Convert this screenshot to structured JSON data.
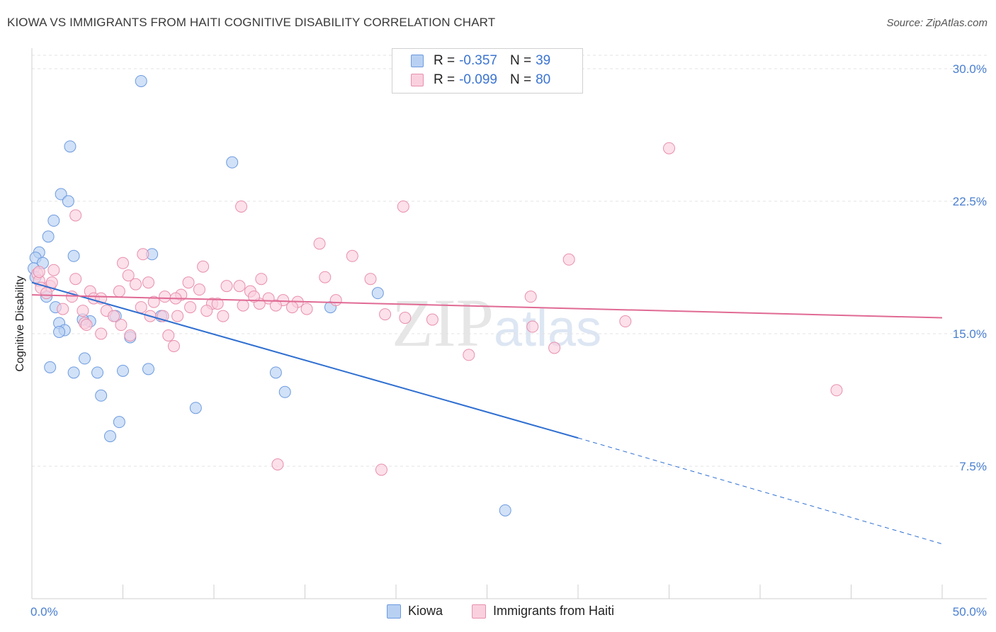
{
  "title": "KIOWA VS IMMIGRANTS FROM HAITI COGNITIVE DISABILITY CORRELATION CHART",
  "source": "Source: ZipAtlas.com",
  "watermark": {
    "zip": "ZIP",
    "atlas": "atlas"
  },
  "legend": {
    "rows": [
      {
        "r_label": "R =",
        "r_value": "-0.357",
        "n_label": "N =",
        "n_value": "39",
        "color": "#a9c8f0",
        "border": "#6d9be0"
      },
      {
        "r_label": "R =",
        "r_value": "-0.099",
        "n_label": "N =",
        "n_value": "80",
        "color": "#f8c4d4",
        "border": "#e890ad"
      }
    ]
  },
  "bottom_legend": [
    {
      "label": "Kiowa",
      "color": "#b8d1f3",
      "border": "#6d9be0"
    },
    {
      "label": "Immigrants from Haiti",
      "color": "#fad0de",
      "border": "#e890ad"
    }
  ],
  "chart_data": {
    "type": "scatter",
    "title": "KIOWA VS IMMIGRANTS FROM HAITI COGNITIVE DISABILITY CORRELATION CHART",
    "xlabel": "",
    "ylabel": "Cognitive Disability",
    "xlim": [
      0,
      50
    ],
    "ylim": [
      0,
      30
    ],
    "x_tick_labels": [
      "0.0%",
      "50.0%"
    ],
    "y_ticks": [
      7.5,
      15.0,
      22.5,
      30.0
    ],
    "y_tick_labels": [
      "7.5%",
      "15.0%",
      "22.5%",
      "30.0%"
    ],
    "grid": true,
    "series": [
      {
        "name": "Kiowa",
        "color": "#6d9be0",
        "fill": "#b8d1f3",
        "points": [
          [
            6.0,
            29.3
          ],
          [
            2.1,
            25.6
          ],
          [
            11.0,
            24.7
          ],
          [
            1.6,
            22.9
          ],
          [
            2.0,
            22.5
          ],
          [
            1.2,
            21.4
          ],
          [
            0.9,
            20.5
          ],
          [
            0.4,
            19.6
          ],
          [
            0.2,
            19.3
          ],
          [
            6.6,
            19.5
          ],
          [
            2.3,
            19.4
          ],
          [
            0.6,
            19.0
          ],
          [
            0.1,
            18.7
          ],
          [
            0.2,
            18.2
          ],
          [
            0.8,
            17.1
          ],
          [
            19.0,
            17.3
          ],
          [
            1.3,
            16.5
          ],
          [
            16.4,
            16.5
          ],
          [
            4.6,
            16.0
          ],
          [
            3.2,
            15.7
          ],
          [
            1.5,
            15.6
          ],
          [
            2.8,
            15.8
          ],
          [
            7.1,
            16.0
          ],
          [
            1.8,
            15.2
          ],
          [
            1.5,
            15.1
          ],
          [
            5.4,
            14.8
          ],
          [
            2.9,
            13.6
          ],
          [
            1.0,
            13.1
          ],
          [
            6.4,
            13.0
          ],
          [
            2.3,
            12.8
          ],
          [
            3.6,
            12.8
          ],
          [
            5.0,
            12.9
          ],
          [
            13.4,
            12.8
          ],
          [
            13.9,
            11.7
          ],
          [
            3.8,
            11.5
          ],
          [
            9.0,
            10.8
          ],
          [
            4.8,
            10.0
          ],
          [
            4.3,
            9.2
          ],
          [
            26.0,
            5.0
          ]
        ],
        "trend": {
          "x0": 0.0,
          "y0": 17.9,
          "x1": 30.0,
          "y1": 9.1,
          "dash_x1": 50.0,
          "dash_y1": 3.1
        }
      },
      {
        "name": "Immigrants from Haiti",
        "color": "#e890ad",
        "fill": "#fad0de",
        "points": [
          [
            35.0,
            25.5
          ],
          [
            11.5,
            22.2
          ],
          [
            20.4,
            22.2
          ],
          [
            2.4,
            21.7
          ],
          [
            15.8,
            20.1
          ],
          [
            6.1,
            19.5
          ],
          [
            17.6,
            19.4
          ],
          [
            29.5,
            19.2
          ],
          [
            5.0,
            19.0
          ],
          [
            9.4,
            18.8
          ],
          [
            1.2,
            18.6
          ],
          [
            0.3,
            18.4
          ],
          [
            5.3,
            18.3
          ],
          [
            16.1,
            18.2
          ],
          [
            2.4,
            18.1
          ],
          [
            0.4,
            18.0
          ],
          [
            12.6,
            18.1
          ],
          [
            18.6,
            18.1
          ],
          [
            6.4,
            17.9
          ],
          [
            8.6,
            17.9
          ],
          [
            5.7,
            17.8
          ],
          [
            1.0,
            17.7
          ],
          [
            10.7,
            17.7
          ],
          [
            11.4,
            17.7
          ],
          [
            0.5,
            17.6
          ],
          [
            9.2,
            17.5
          ],
          [
            3.2,
            17.4
          ],
          [
            4.8,
            17.4
          ],
          [
            12.0,
            17.4
          ],
          [
            0.8,
            17.3
          ],
          [
            2.2,
            17.1
          ],
          [
            8.2,
            17.2
          ],
          [
            7.3,
            17.1
          ],
          [
            3.4,
            17.0
          ],
          [
            13.0,
            17.0
          ],
          [
            7.9,
            17.0
          ],
          [
            13.8,
            16.9
          ],
          [
            16.7,
            16.9
          ],
          [
            27.4,
            17.1
          ],
          [
            6.7,
            16.8
          ],
          [
            9.9,
            16.7
          ],
          [
            10.2,
            16.7
          ],
          [
            11.6,
            16.6
          ],
          [
            12.5,
            16.7
          ],
          [
            14.6,
            16.8
          ],
          [
            13.4,
            16.6
          ],
          [
            6.0,
            16.5
          ],
          [
            8.7,
            16.5
          ],
          [
            14.3,
            16.5
          ],
          [
            15.1,
            16.4
          ],
          [
            1.7,
            16.4
          ],
          [
            2.8,
            16.3
          ],
          [
            4.1,
            16.3
          ],
          [
            9.6,
            16.3
          ],
          [
            4.5,
            16.0
          ],
          [
            6.5,
            16.0
          ],
          [
            7.2,
            16.0
          ],
          [
            8.0,
            16.0
          ],
          [
            10.5,
            16.0
          ],
          [
            19.4,
            16.1
          ],
          [
            22.0,
            15.8
          ],
          [
            20.5,
            15.9
          ],
          [
            2.9,
            15.6
          ],
          [
            3.0,
            15.5
          ],
          [
            4.9,
            15.5
          ],
          [
            27.5,
            15.4
          ],
          [
            32.6,
            15.7
          ],
          [
            3.8,
            15.0
          ],
          [
            5.4,
            14.9
          ],
          [
            7.5,
            14.9
          ],
          [
            24.0,
            13.8
          ],
          [
            7.8,
            14.3
          ],
          [
            28.7,
            14.2
          ],
          [
            44.2,
            11.8
          ],
          [
            13.5,
            7.6
          ],
          [
            19.2,
            7.3
          ],
          [
            3.8,
            17.0
          ],
          [
            0.4,
            18.5
          ],
          [
            1.1,
            17.9
          ],
          [
            12.2,
            17.1
          ]
        ],
        "trend": {
          "x0": 0.0,
          "y0": 17.2,
          "x1": 50.0,
          "y1": 15.9
        }
      }
    ]
  }
}
